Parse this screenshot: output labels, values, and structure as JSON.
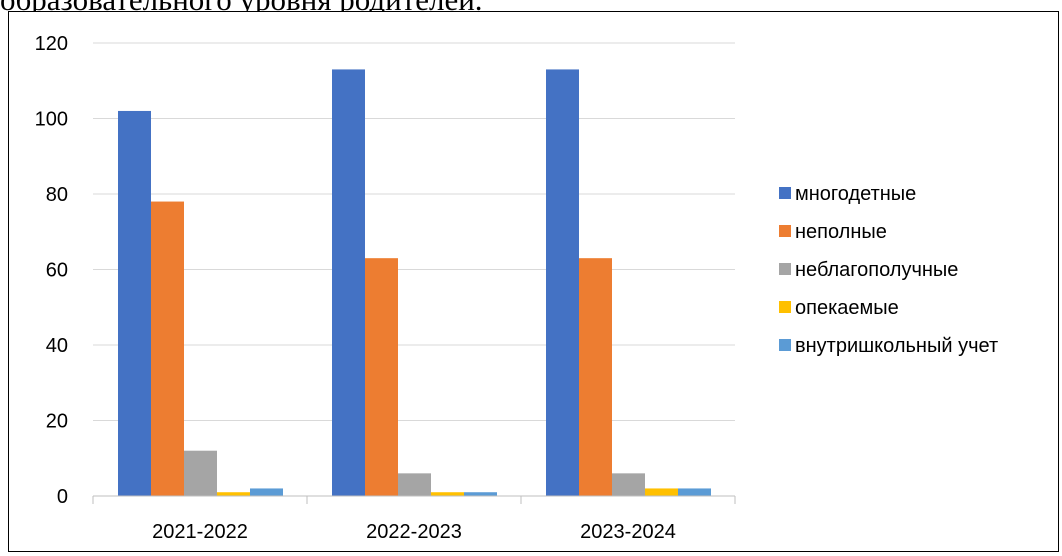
{
  "document": {
    "heading_fragment": "образовательного уровня родителей."
  },
  "chart_data": {
    "type": "bar",
    "categories": [
      "2021-2022",
      "2022-2023",
      "2023-2024"
    ],
    "series": [
      {
        "name": "многодетные",
        "color": "#4472C4",
        "values": [
          102,
          113,
          113
        ]
      },
      {
        "name": "неполные",
        "color": "#ED7D31",
        "values": [
          78,
          63,
          63
        ]
      },
      {
        "name": "неблагополучные",
        "color": "#A5A5A5",
        "values": [
          12,
          6,
          6
        ]
      },
      {
        "name": "опекаемые",
        "color": "#FFC000",
        "values": [
          1,
          1,
          2
        ]
      },
      {
        "name": "внутришкольный учет",
        "color": "#5B9BD5",
        "values": [
          2,
          1,
          2
        ]
      }
    ],
    "ylim": [
      0,
      120
    ],
    "yticks": [
      0,
      20,
      40,
      60,
      80,
      100,
      120
    ],
    "grid": true,
    "legend_position": "right"
  }
}
